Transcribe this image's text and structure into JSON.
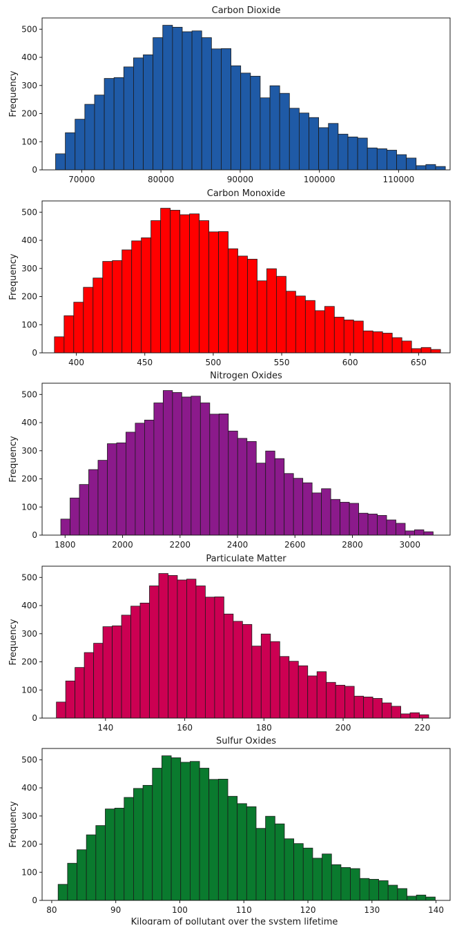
{
  "shared_xlabel": "Kilogram of pollutant over the system lifetime",
  "chart_data": [
    {
      "type": "bar",
      "title": "Carbon Dioxide",
      "ylabel": "Frequency",
      "xlabel": "",
      "color": "#1f5aa6",
      "bin_start": 66700,
      "bin_width": 1230,
      "xlim": [
        65000,
        116500
      ],
      "ylim": [
        0,
        540
      ],
      "xticks": [
        70000,
        80000,
        90000,
        100000,
        110000
      ],
      "yticks": [
        0,
        100,
        200,
        300,
        400,
        500
      ],
      "values": [
        57,
        132,
        180,
        233,
        266,
        325,
        328,
        366,
        398,
        409,
        470,
        514,
        507,
        491,
        494,
        470,
        430,
        431,
        370,
        344,
        333,
        256,
        299,
        272,
        219,
        202,
        186,
        150,
        165,
        127,
        117,
        113,
        78,
        75,
        70,
        54,
        42,
        15,
        19,
        12
      ]
    },
    {
      "type": "bar",
      "title": "Carbon Monoxide",
      "ylabel": "Frequency",
      "xlabel": "",
      "color": "#ff0000",
      "bin_start": 384,
      "bin_width": 7.05,
      "xlim": [
        375,
        673
      ],
      "ylim": [
        0,
        540
      ],
      "xticks": [
        400,
        450,
        500,
        550,
        600,
        650
      ],
      "yticks": [
        0,
        100,
        200,
        300,
        400,
        500
      ],
      "values": [
        57,
        132,
        180,
        233,
        266,
        325,
        328,
        366,
        398,
        409,
        470,
        514,
        507,
        491,
        494,
        470,
        430,
        431,
        370,
        344,
        333,
        256,
        299,
        272,
        219,
        202,
        186,
        150,
        165,
        127,
        117,
        113,
        78,
        75,
        70,
        54,
        42,
        15,
        19,
        12
      ]
    },
    {
      "type": "bar",
      "title": "Nitrogen Oxides",
      "ylabel": "Frequency",
      "xlabel": "",
      "color": "#8b1a8b",
      "bin_start": 1785,
      "bin_width": 32.4,
      "xlim": [
        1720,
        3140
      ],
      "ylim": [
        0,
        540
      ],
      "xticks": [
        1800,
        2000,
        2200,
        2400,
        2600,
        2800,
        3000
      ],
      "yticks": [
        0,
        100,
        200,
        300,
        400,
        500
      ],
      "values": [
        57,
        132,
        180,
        233,
        266,
        325,
        328,
        366,
        398,
        409,
        470,
        514,
        507,
        491,
        494,
        470,
        430,
        431,
        370,
        344,
        333,
        256,
        299,
        272,
        219,
        202,
        186,
        150,
        165,
        127,
        117,
        113,
        78,
        75,
        70,
        54,
        42,
        15,
        19,
        12
      ]
    },
    {
      "type": "bar",
      "title": "Particulate Matter",
      "ylabel": "Frequency",
      "xlabel": "",
      "color": "#cc0052",
      "bin_start": 127.6,
      "bin_width": 2.35,
      "xlim": [
        124,
        227
      ],
      "ylim": [
        0,
        540
      ],
      "xticks": [
        140,
        160,
        180,
        200,
        220
      ],
      "yticks": [
        0,
        100,
        200,
        300,
        400,
        500
      ],
      "values": [
        57,
        132,
        180,
        233,
        266,
        325,
        328,
        366,
        398,
        409,
        470,
        514,
        507,
        491,
        494,
        470,
        430,
        431,
        370,
        344,
        333,
        256,
        299,
        272,
        219,
        202,
        186,
        150,
        165,
        127,
        117,
        113,
        78,
        75,
        70,
        54,
        42,
        15,
        19,
        12
      ]
    },
    {
      "type": "bar",
      "title": "Sulfur Oxides",
      "ylabel": "Frequency",
      "xlabel": "Kilogram of pollutant over the system lifetime",
      "color": "#0a7a2e",
      "bin_start": 81,
      "bin_width": 1.472,
      "xlim": [
        78.5,
        142.2
      ],
      "ylim": [
        0,
        540
      ],
      "xticks": [
        80,
        90,
        100,
        110,
        120,
        130,
        140
      ],
      "yticks": [
        0,
        100,
        200,
        300,
        400,
        500
      ],
      "values": [
        57,
        132,
        180,
        233,
        266,
        325,
        328,
        366,
        398,
        409,
        470,
        514,
        507,
        491,
        494,
        470,
        430,
        431,
        370,
        344,
        333,
        256,
        299,
        272,
        219,
        202,
        186,
        150,
        165,
        127,
        117,
        113,
        78,
        75,
        70,
        54,
        42,
        15,
        19,
        12
      ]
    }
  ]
}
